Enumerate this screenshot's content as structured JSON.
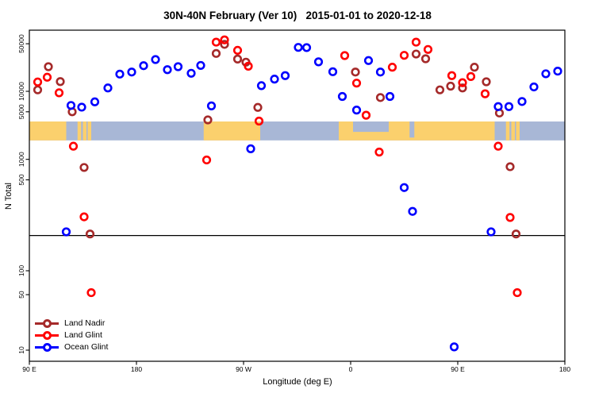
{
  "title": "30N-40N February (Ver 10)   2015-01-01 to 2020-12-18",
  "chart_data": {
    "type": "scatter",
    "title": "30N-40N February (Ver 10)   2015-01-01 to 2020-12-18",
    "xlabel": "Longitude (deg E)",
    "ylabel": "N Total",
    "x_axis_note": "longitude axis spans 450 deg eastward: 90E → 180 → 90W → 0 → 90E → 180; deg = degrees east of 90E",
    "y_scale": "log10 with broken axis: upper panel ~50000..76, lower panel ~76..10 (compressed decades)",
    "x_range_deg": [
      0,
      450
    ],
    "y_range": [
      10,
      60000
    ],
    "grid": "off",
    "x_ticks": [
      {
        "label": "90 E",
        "deg": 0
      },
      {
        "label": "180",
        "deg": 90
      },
      {
        "label": "90 W",
        "deg": 180
      },
      {
        "label": "0",
        "deg": 270
      },
      {
        "label": "90 E",
        "deg": 360
      },
      {
        "label": "180",
        "deg": 450
      }
    ],
    "y_ticks": [
      {
        "label": "50000",
        "value": 50000,
        "panel": "top"
      },
      {
        "label": "10000",
        "value": 10000,
        "panel": "top"
      },
      {
        "label": "5000",
        "value": 5000,
        "panel": "top"
      },
      {
        "label": "1000",
        "value": 1000,
        "panel": "top"
      },
      {
        "label": "500",
        "value": 500,
        "panel": "top"
      },
      {
        "label": "100",
        "value": 100,
        "panel": "bottom"
      },
      {
        "label": "50",
        "value": 50,
        "panel": "bottom"
      },
      {
        "label": "10",
        "value": 10,
        "panel": "bottom"
      }
    ],
    "axis_break_n": 76,
    "legend": {
      "position": "lower-left",
      "items": [
        {
          "label": "Land Nadir",
          "color": "#A52A2A"
        },
        {
          "label": "Land Glint",
          "color": "#FF0000"
        },
        {
          "label": "Ocean Glint",
          "color": "#0000FF"
        }
      ]
    },
    "map_band": {
      "description": "30N-40N world-map latitude strip drawn across plot between N≈3600 and N≈1900; tan = land, light blue-gray = ocean",
      "top_n": 3600,
      "bottom_n": 1900,
      "land_color": "#FBD06D",
      "ocean_color": "#A8B7D6",
      "land_segments_deg": [
        [
          0,
          31
        ],
        [
          146.5,
          194
        ],
        [
          260,
          391
        ]
      ],
      "island_segments_deg": [
        [
          40.5,
          43.5
        ],
        [
          45,
          48
        ],
        [
          49,
          52
        ],
        [
          400.5,
          403.5
        ],
        [
          405,
          408
        ],
        [
          409,
          412
        ]
      ],
      "sea_patches_deg": [
        {
          "from": 272,
          "to": 302,
          "half": "top"
        },
        {
          "from": 319.5,
          "to": 323.5,
          "half": "full"
        }
      ]
    },
    "series": [
      {
        "name": "Land Nadir",
        "color": "#A52A2A",
        "marker": "open-circle",
        "points": [
          [
            7,
            10500
          ],
          [
            16,
            23000
          ],
          [
            26,
            13900
          ],
          [
            36,
            5000
          ],
          [
            46,
            760
          ],
          [
            51,
            80
          ],
          [
            150,
            3800
          ],
          [
            157,
            36000
          ],
          [
            164,
            49000
          ],
          [
            175,
            29800
          ],
          [
            182,
            26800
          ],
          [
            192,
            5800
          ],
          [
            274,
            19200
          ],
          [
            295,
            8100
          ],
          [
            325,
            35300
          ],
          [
            333,
            30100
          ],
          [
            345,
            10500
          ],
          [
            354,
            11900
          ],
          [
            364,
            11200
          ],
          [
            374,
            22600
          ],
          [
            384,
            13800
          ],
          [
            395,
            4800
          ],
          [
            404,
            780
          ],
          [
            409,
            80
          ]
        ]
      },
      {
        "name": "Land Glint",
        "color": "#FF0000",
        "marker": "open-circle",
        "points": [
          [
            7,
            13700
          ],
          [
            15,
            16100
          ],
          [
            25,
            9500
          ],
          [
            37,
            1560
          ],
          [
            46,
            143
          ],
          [
            52,
            53
          ],
          [
            149,
            980
          ],
          [
            157,
            52800
          ],
          [
            164,
            57000
          ],
          [
            175,
            40000
          ],
          [
            184,
            23400
          ],
          [
            193,
            3650
          ],
          [
            265,
            33500
          ],
          [
            275,
            13200
          ],
          [
            283,
            4450
          ],
          [
            294,
            1280
          ],
          [
            305,
            22600
          ],
          [
            315,
            33800
          ],
          [
            325,
            52800
          ],
          [
            335,
            41200
          ],
          [
            355,
            17000
          ],
          [
            364,
            13400
          ],
          [
            371,
            16500
          ],
          [
            383,
            9200
          ],
          [
            394,
            1560
          ],
          [
            404,
            140
          ],
          [
            410,
            53
          ]
        ]
      },
      {
        "name": "Ocean Glint",
        "color": "#0000FF",
        "marker": "open-circle",
        "points": [
          [
            31,
            86
          ],
          [
            35,
            6200
          ],
          [
            44,
            5850
          ],
          [
            55,
            7000
          ],
          [
            66,
            11200
          ],
          [
            76,
            17900
          ],
          [
            86,
            19200
          ],
          [
            96,
            23800
          ],
          [
            106,
            29300
          ],
          [
            116,
            20800
          ],
          [
            125,
            23000
          ],
          [
            136,
            18400
          ],
          [
            144,
            24000
          ],
          [
            153,
            6100
          ],
          [
            186,
            1430
          ],
          [
            195,
            12100
          ],
          [
            206,
            15100
          ],
          [
            215,
            17000
          ],
          [
            226,
            44200
          ],
          [
            233,
            43900
          ],
          [
            243,
            27100
          ],
          [
            255,
            19400
          ],
          [
            263,
            8400
          ],
          [
            275,
            5300
          ],
          [
            285,
            28300
          ],
          [
            295,
            19200
          ],
          [
            303,
            8400
          ],
          [
            315,
            385
          ],
          [
            322,
            172
          ],
          [
            357,
            11
          ],
          [
            388,
            86
          ],
          [
            394,
            5960
          ],
          [
            403,
            5960
          ],
          [
            414,
            7080
          ],
          [
            424,
            11600
          ],
          [
            434,
            18100
          ],
          [
            444,
            19800
          ]
        ]
      }
    ]
  }
}
